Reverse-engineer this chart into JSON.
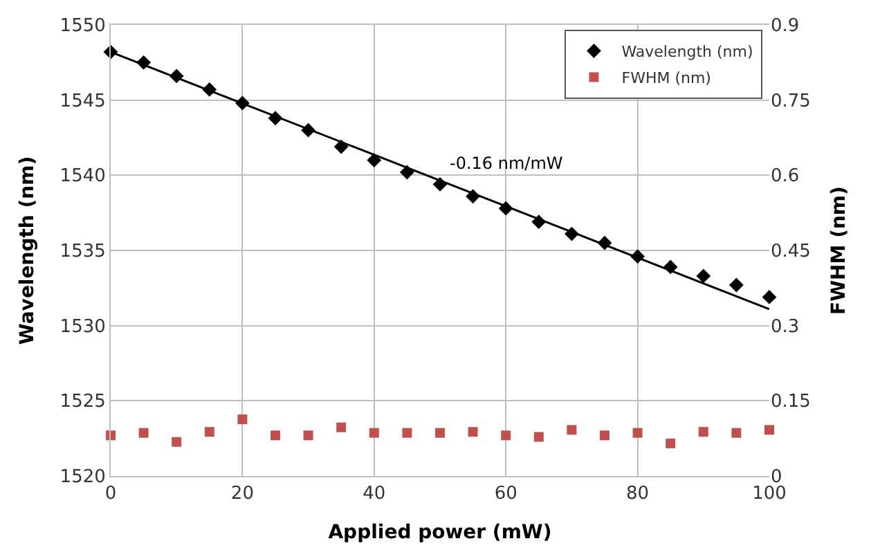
{
  "chart_data": {
    "type": "scatter",
    "xlabel": "Applied power (mW)",
    "ylabel": "Wavelength (nm)",
    "y2label": "FWHM (nm)",
    "x": [
      0,
      5,
      10,
      15,
      20,
      25,
      30,
      35,
      40,
      45,
      50,
      55,
      60,
      65,
      70,
      75,
      80,
      85,
      90,
      95,
      100
    ],
    "series": [
      {
        "name": "Wavelength (nm)",
        "marker": "diamond",
        "color": "#000000",
        "values": [
          1548.2,
          1547.5,
          1546.6,
          1545.7,
          1544.8,
          1543.8,
          1543.0,
          1541.9,
          1541.0,
          1540.2,
          1539.4,
          1538.6,
          1537.8,
          1536.9,
          1536.1,
          1535.5,
          1534.6,
          1533.9,
          1533.3,
          1532.7,
          1531.9
        ]
      },
      {
        "name": "FWHM (nm)",
        "marker": "square",
        "color": "#c0504d",
        "axis": "y2",
        "values": [
          0.081,
          0.086,
          0.068,
          0.088,
          0.113,
          0.081,
          0.081,
          0.097,
          0.086,
          0.086,
          0.086,
          0.088,
          0.081,
          0.078,
          0.092,
          0.081,
          0.086,
          0.065,
          0.088,
          0.086,
          0.092
        ]
      },
      {
        "type": "line",
        "color": "#000000",
        "x": [
          0,
          100
        ],
        "values": [
          1548.2,
          1531.1
        ],
        "line_style": "solid"
      }
    ],
    "annotations": [
      "-0.16 nm/mW"
    ],
    "xlim": [
      0,
      100
    ],
    "xticks": [
      0,
      20,
      40,
      60,
      80,
      100
    ],
    "ylim": [
      1520,
      1550
    ],
    "yticks": [
      1520,
      1525,
      1530,
      1535,
      1540,
      1545,
      1550
    ],
    "y2lim": [
      0,
      0.9
    ],
    "y2ticks": [
      0,
      0.15,
      0.3,
      0.45,
      0.6,
      0.75,
      0.9
    ],
    "grid": true,
    "legend": "top right"
  }
}
